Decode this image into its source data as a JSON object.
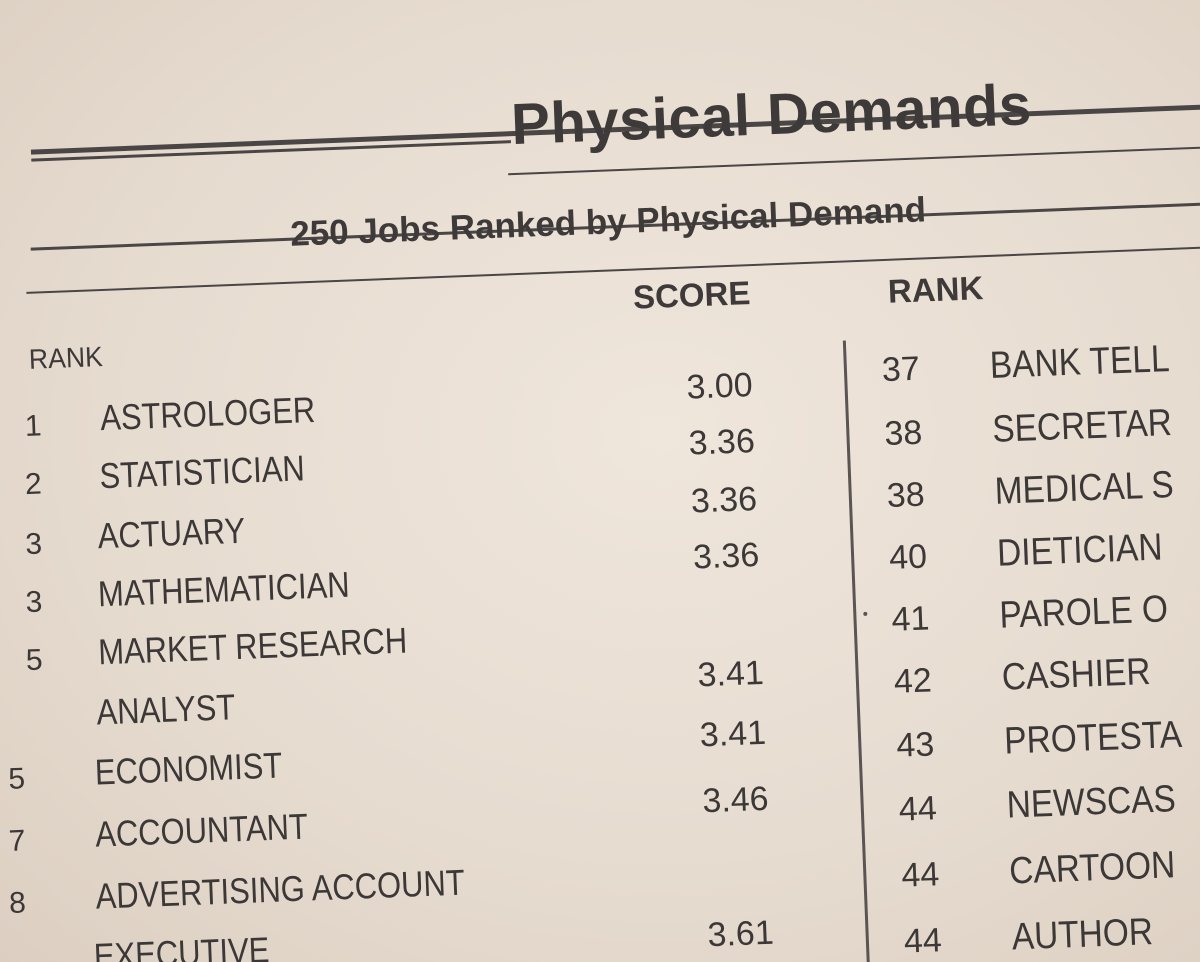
{
  "title": "Physical Demands",
  "subtitle": "250 Jobs Ranked by Physical Demand",
  "headers": {
    "rank_left": "RANK",
    "score": "SCORE",
    "rank_right": "RANK"
  },
  "left_rows": [
    {
      "rank": "1",
      "job": "ASTROLOGER",
      "score": "3.00"
    },
    {
      "rank": "2",
      "job": "STATISTICIAN",
      "score": "3.36"
    },
    {
      "rank": "3",
      "job": "ACTUARY",
      "score": "3.36"
    },
    {
      "rank": "3",
      "job": "MATHEMATICIAN",
      "score": "3.36"
    },
    {
      "rank": "5",
      "job": "MARKET RESEARCH",
      "score": ""
    },
    {
      "rank": "",
      "job": "ANALYST",
      "score": "3.41"
    },
    {
      "rank": "5",
      "job": "ECONOMIST",
      "score": "3.41"
    },
    {
      "rank": "7",
      "job": "ACCOUNTANT",
      "score": "3.46"
    },
    {
      "rank": "8",
      "job": "ADVERTISING ACCOUNT",
      "score": ""
    },
    {
      "rank": "",
      "job": "EXECUTIVE",
      "score": "3.61"
    }
  ],
  "right_rows": [
    {
      "rank": "37",
      "job": "BANK TELL"
    },
    {
      "rank": "38",
      "job": "SECRETAR"
    },
    {
      "rank": "38",
      "job": "MEDICAL S"
    },
    {
      "rank": "40",
      "job": "DIETICIAN"
    },
    {
      "rank": "41",
      "job": "PAROLE O"
    },
    {
      "rank": "42",
      "job": "CASHIER"
    },
    {
      "rank": "43",
      "job": "PROTESTA"
    },
    {
      "rank": "44",
      "job": "NEWSCAS"
    },
    {
      "rank": "44",
      "job": "CARTOON"
    },
    {
      "rank": "44",
      "job": "AUTHOR"
    }
  ]
}
